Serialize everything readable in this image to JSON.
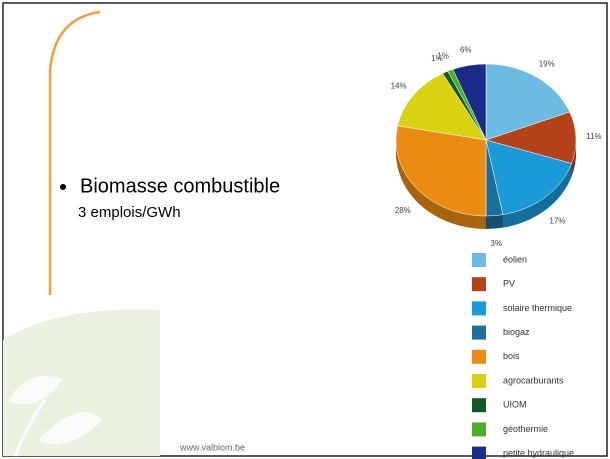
{
  "slide": {
    "bullet": "Biomasse combustible",
    "subtext": "3 emplois/GWh",
    "footer": "www.valbiom.be"
  },
  "chart_data": {
    "type": "pie",
    "categories": [
      "éolien",
      "PV",
      "solaire thermique",
      "biogaz",
      "bois",
      "agrocarburants",
      "UIOM",
      "géothermie",
      "petite hydraulique"
    ],
    "values": [
      19,
      11,
      17,
      3,
      28,
      14,
      1,
      1,
      6
    ],
    "value_labels": [
      "19%",
      "11%",
      "17%",
      "3%",
      "28%",
      "14%",
      "1%",
      "1%",
      "6%"
    ],
    "colors": [
      "#6bbbe3",
      "#b5421a",
      "#1b9ad8",
      "#1c6f98",
      "#ea8c12",
      "#d9d211",
      "#0e5a2b",
      "#4caf2a",
      "#1a2b8a"
    ]
  }
}
